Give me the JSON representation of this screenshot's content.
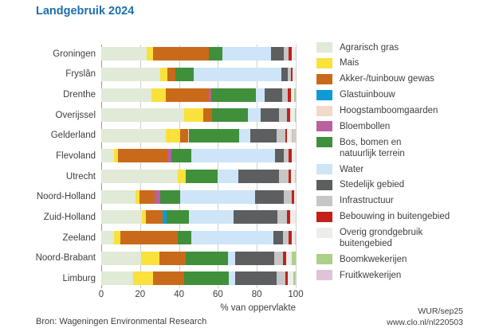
{
  "title": "Landgebruik 2024",
  "accent_color": "#1e6fae",
  "footer": {
    "source": "Bron: Wageningen Environmental Research",
    "credit": "WUR/sep25",
    "url": "www.clo.nl/nl220503"
  },
  "legend": {
    "position": "right",
    "labels": [
      "Agrarisch gras",
      "Mais",
      "Akker-/tuinbouw gewas",
      "Glastuinbouw",
      "Hoogstamboomgaarden",
      "Bloembollen",
      "Bos, bomen en\nnatuurlijk terrein",
      "Water",
      "Stedelijk gebied",
      "Infrastructuur",
      "Bebouwing in buitengebied",
      "Overig grondgebruik\nbuitengebied",
      "Boomkwekerijen",
      "Fruitkwekerijen"
    ]
  },
  "chart_data": {
    "type": "bar",
    "variant": "horizontal-stacked",
    "title": "Landgebruik 2024",
    "xlabel": "% van oppervlakte",
    "xlim": [
      0,
      100
    ],
    "xticks": [
      0,
      20,
      40,
      60,
      80,
      100
    ],
    "grid": true,
    "legend_position": "right",
    "unit": "% van oppervlakte",
    "categories": [
      "Groningen",
      "Fryslân",
      "Drenthe",
      "Overijssel",
      "Gelderland",
      "Flevoland",
      "Utrecht",
      "Noord-Holland",
      "Zuid-Holland",
      "Zeeland",
      "Noord-Brabant",
      "Limburg"
    ],
    "series": [
      {
        "name": "Agrarisch gras",
        "color": "#e1ead6",
        "values": [
          23.5,
          30.5,
          26,
          42.5,
          33,
          6.5,
          39.5,
          17.5,
          21,
          6.5,
          20.5,
          16.5
        ]
      },
      {
        "name": "Mais",
        "color": "#fae13c",
        "values": [
          3,
          3.5,
          7,
          10,
          7.5,
          2,
          4,
          2,
          2,
          3.5,
          9.5,
          10
        ]
      },
      {
        "name": "Akker-/tuinbouw gewas",
        "color": "#c96a1b",
        "values": [
          29,
          4,
          22.5,
          4.5,
          4,
          25.5,
          0,
          8,
          8.5,
          29.5,
          13.5,
          16
        ]
      },
      {
        "name": "Glastuinbouw",
        "color": "#0f9ad6",
        "values": [
          0,
          0,
          0,
          0,
          0,
          0,
          0,
          0,
          2,
          0,
          0,
          0
        ]
      },
      {
        "name": "Hoogstamboomgaarden",
        "color": "#f3d9c9",
        "values": [
          0,
          0,
          0,
          0,
          0.5,
          0,
          0,
          0,
          0,
          0,
          0,
          0
        ]
      },
      {
        "name": "Bloembollen",
        "color": "#bb609f",
        "values": [
          0,
          0,
          1,
          0,
          0,
          2,
          0,
          3,
          0,
          0,
          0,
          0
        ]
      },
      {
        "name": "Bos, bomen en natuurlijk terrein",
        "color": "#408f3b",
        "values": [
          7,
          9.5,
          23,
          18.5,
          26,
          10.5,
          16.5,
          10,
          11.5,
          7,
          21.5,
          23
        ]
      },
      {
        "name": "Water",
        "color": "#cde5f7",
        "values": [
          25,
          45,
          4.5,
          6.5,
          5.5,
          43,
          10.5,
          38.5,
          23,
          42,
          4,
          3.5
        ]
      },
      {
        "name": "Stedelijk gebied",
        "color": "#5d5e60",
        "values": [
          6.5,
          3.5,
          9,
          9.5,
          13.5,
          4.5,
          21,
          15,
          22.5,
          5,
          20,
          21
        ]
      },
      {
        "name": "Infrastructuur",
        "color": "#c5c6c5",
        "values": [
          2.5,
          1.5,
          3,
          4,
          4.5,
          2.5,
          5,
          4,
          5,
          3,
          4.5,
          4.5
        ]
      },
      {
        "name": "Bebouwing in buitengebied",
        "color": "#c42017",
        "values": [
          1.5,
          1,
          1.5,
          1.5,
          1,
          1.5,
          1,
          1,
          1.5,
          1.5,
          1.5,
          1.5
        ]
      },
      {
        "name": "Overig grondgebruik buitengebied",
        "color": "#ededeb",
        "values": [
          2,
          1.5,
          1.5,
          2.5,
          2.5,
          2,
          2,
          1,
          3,
          1.5,
          3,
          3
        ]
      },
      {
        "name": "Boomkwekerijen",
        "color": "#aad185",
        "values": [
          0,
          0,
          1,
          0.5,
          0.5,
          0,
          0,
          0,
          0,
          0,
          2,
          0.5
        ]
      },
      {
        "name": "Fruitkwekerijen",
        "color": "#dfc3d9",
        "values": [
          0,
          0,
          0,
          0,
          1.5,
          0,
          0.5,
          0,
          0,
          1,
          0,
          0.5
        ]
      }
    ]
  }
}
